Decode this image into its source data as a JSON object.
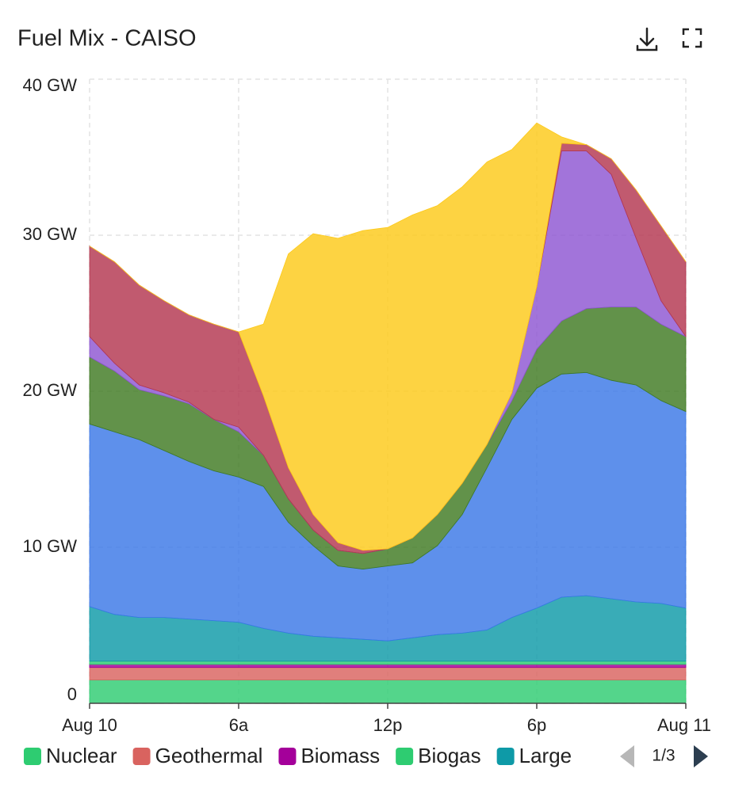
{
  "chart_data": {
    "type": "stacked_area",
    "title": "Fuel Mix - CAISO",
    "x": [
      0,
      1,
      2,
      3,
      4,
      5,
      6,
      7,
      8,
      9,
      10,
      11,
      12,
      13,
      14,
      15,
      16,
      17,
      18,
      19,
      20,
      21,
      22,
      23,
      24
    ],
    "xlim": [
      0,
      24
    ],
    "xticks": [
      {
        "value": 0,
        "label": "Aug 10"
      },
      {
        "value": 6,
        "label": "6a"
      },
      {
        "value": 12,
        "label": "12p"
      },
      {
        "value": 18,
        "label": "6p"
      },
      {
        "value": 24,
        "label": "Aug 11"
      }
    ],
    "ylim": [
      0,
      40
    ],
    "yticks": [
      0,
      {
        "value": 10,
        "label": "10 GW"
      },
      {
        "value": 20,
        "label": "20 GW"
      },
      {
        "value": 30,
        "label": "30 GW"
      },
      {
        "value": 40,
        "label": "40 GW"
      }
    ],
    "grid": true,
    "legend_page": "1/3",
    "series": [
      {
        "name": "Nuclear",
        "color": "#2ecc71",
        "values": [
          1.5,
          1.5,
          1.5,
          1.5,
          1.5,
          1.5,
          1.5,
          1.5,
          1.5,
          1.5,
          1.5,
          1.5,
          1.5,
          1.5,
          1.5,
          1.5,
          1.5,
          1.5,
          1.5,
          1.5,
          1.5,
          1.5,
          1.5,
          1.5,
          1.5
        ]
      },
      {
        "name": "Geothermal",
        "color": "#d9635f",
        "values": [
          0.8,
          0.8,
          0.8,
          0.8,
          0.8,
          0.8,
          0.8,
          0.8,
          0.8,
          0.8,
          0.8,
          0.8,
          0.8,
          0.8,
          0.8,
          0.8,
          0.8,
          0.8,
          0.8,
          0.8,
          0.8,
          0.8,
          0.8,
          0.8,
          0.8
        ]
      },
      {
        "name": "Biomass",
        "color": "#a4009a",
        "values": [
          0.2,
          0.2,
          0.2,
          0.2,
          0.2,
          0.2,
          0.2,
          0.2,
          0.2,
          0.2,
          0.2,
          0.2,
          0.2,
          0.2,
          0.2,
          0.2,
          0.2,
          0.2,
          0.2,
          0.2,
          0.2,
          0.2,
          0.2,
          0.2,
          0.2
        ]
      },
      {
        "name": "Biogas",
        "color": "#2ecc71",
        "values": [
          0.2,
          0.2,
          0.2,
          0.2,
          0.2,
          0.2,
          0.2,
          0.2,
          0.2,
          0.2,
          0.2,
          0.2,
          0.2,
          0.2,
          0.2,
          0.2,
          0.2,
          0.2,
          0.2,
          0.2,
          0.2,
          0.2,
          0.2,
          0.2,
          0.2
        ]
      },
      {
        "name": "Large",
        "color": "#0e9aa7",
        "values": [
          3.5,
          3.0,
          2.8,
          2.8,
          2.7,
          2.6,
          2.5,
          2.1,
          1.8,
          1.6,
          1.5,
          1.4,
          1.3,
          1.5,
          1.7,
          1.8,
          2.0,
          2.8,
          3.4,
          4.1,
          4.2,
          4.0,
          3.8,
          3.7,
          3.4
        ]
      },
      {
        "color": "#3a78e6",
        "values": [
          11.7,
          11.7,
          11.4,
          10.7,
          10.1,
          9.6,
          9.3,
          9.1,
          7.1,
          5.8,
          4.6,
          4.5,
          4.8,
          4.8,
          5.7,
          7.6,
          10.4,
          12.7,
          14.1,
          14.3,
          14.3,
          14.0,
          13.9,
          13.0,
          12.6
        ]
      },
      {
        "color": "#3f7a22",
        "values": [
          4.3,
          3.9,
          3.2,
          3.5,
          3.7,
          3.3,
          2.9,
          2.0,
          1.5,
          1.0,
          1.0,
          1.0,
          1.1,
          1.6,
          2.0,
          2.0,
          1.5,
          1.2,
          2.5,
          3.4,
          4.1,
          4.7,
          5.0,
          4.9,
          4.8
        ]
      },
      {
        "color": "#8e55d2",
        "values": [
          1.3,
          0.5,
          0.3,
          0.2,
          0.1,
          0,
          0.3,
          0,
          0,
          0,
          0,
          0,
          0,
          0,
          0,
          0,
          0,
          0.5,
          4.0,
          10.9,
          10.1,
          8.5,
          4.4,
          1.5,
          0
        ]
      },
      {
        "color": "#b3364f",
        "values": [
          5.8,
          6.5,
          6.4,
          5.9,
          5.6,
          6.1,
          6.1,
          3.8,
          2.0,
          1.0,
          0.5,
          0.2,
          0,
          0,
          0,
          0,
          0,
          0,
          0,
          0.5,
          0.4,
          1.0,
          3.1,
          4.8,
          4.8
        ]
      },
      {
        "color": "#fdc918",
        "values": [
          0,
          0,
          0,
          0,
          0,
          0,
          0,
          4.6,
          13.7,
          18.0,
          19.5,
          20.5,
          20.6,
          20.7,
          19.8,
          19.0,
          18.1,
          15.6,
          10.5,
          0.4,
          0,
          0,
          0,
          0,
          0
        ]
      }
    ]
  }
}
